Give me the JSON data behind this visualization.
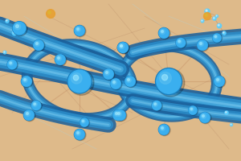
{
  "background_color": "#DEBA8A",
  "bg_gradient_top": "#E8CB9A",
  "bg_gradient_bottom": "#D4A870",
  "tube_color_main": "#2B8FCC",
  "tube_color_dark": "#1A5F9A",
  "tube_color_light": "#5ABFEF",
  "tube_color_highlight": "#90D8F8",
  "node_color": "#3AAFEF",
  "node_dark": "#1A7FBF",
  "node_highlight": "#AAEEFF",
  "spoke_color": "#C8956A",
  "spoke_color2": "#B07850",
  "thin_line_color": "#B08060",
  "thin_line_color2": "#A8D8E8",
  "accent_orange": "#E8A030",
  "accent_yellow": "#DDB830",
  "small_dot_color": "#5ACFFF",
  "figsize": [
    3.0,
    2.0
  ],
  "dpi": 100
}
